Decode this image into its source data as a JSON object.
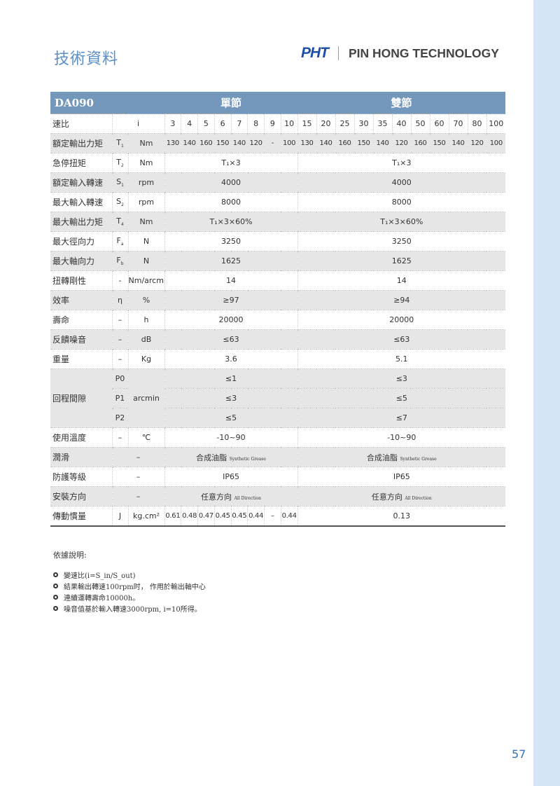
{
  "header": {
    "title": "技術資料",
    "logo_mark": "PHT",
    "company": "PIN HONG TECHNOLOGY"
  },
  "table": {
    "model": "DA090",
    "single_label": "單節",
    "double_label": "雙節",
    "ratio": {
      "label": "速比",
      "sym": "i",
      "values": [
        "3",
        "4",
        "5",
        "6",
        "7",
        "8",
        "9",
        "10",
        "15",
        "20",
        "25",
        "30",
        "35",
        "40",
        "50",
        "60",
        "70",
        "80",
        "100"
      ]
    },
    "rows": [
      {
        "label": "額定輸出力矩",
        "sym": "T",
        "sub": "1",
        "unit": "Nm",
        "values": [
          "130",
          "140",
          "160",
          "150",
          "140",
          "120",
          "-",
          "100",
          "130",
          "140",
          "160",
          "150",
          "140",
          "120",
          "160",
          "150",
          "140",
          "120",
          "100"
        ]
      },
      {
        "label": "急停扭矩",
        "sym": "T",
        "sub": "2",
        "unit": "Nm",
        "single": "T₁×3",
        "double": "T₁×3"
      },
      {
        "label": "額定輸入轉速",
        "sym": "S",
        "sub": "1",
        "unit": "rpm",
        "single": "4000",
        "double": "4000"
      },
      {
        "label": "最大輸入轉速",
        "sym": "S",
        "sub": "2",
        "unit": "rpm",
        "single": "8000",
        "double": "8000"
      },
      {
        "label": "最大輸出力矩",
        "sym": "T",
        "sub": "4",
        "unit": "Nm",
        "single": "T₁×3×60%",
        "double": "T₁×3×60%"
      },
      {
        "label": "最大徑向力",
        "sym": "F",
        "sub": "a",
        "unit": "N",
        "single": "3250",
        "double": "3250"
      },
      {
        "label": "最大軸向力",
        "sym": "F",
        "sub": "b",
        "unit": "N",
        "single": "1625",
        "double": "1625"
      },
      {
        "label": "扭轉剛性",
        "sym": "-",
        "unit": "Nm/arcmin",
        "single": "14",
        "double": "14"
      },
      {
        "label": "效率",
        "sym": "η",
        "unit": "%",
        "single": "≥97",
        "double": "≥94"
      },
      {
        "label": "壽命",
        "sym": "–",
        "unit": "h",
        "single": "20000",
        "double": "20000"
      },
      {
        "label": "反饋噪音",
        "sym": "–",
        "unit": "dB",
        "single": "≤63",
        "double": "≤63"
      },
      {
        "label": "重量",
        "sym": "–",
        "unit": "Kg",
        "single": "3.6",
        "double": "5.1"
      }
    ],
    "backlash": {
      "label": "回程間隙",
      "unit": "arcmin",
      "levels": [
        {
          "sym": "P0",
          "single": "≤1",
          "double": "≤3"
        },
        {
          "sym": "P1",
          "single": "≤3",
          "double": "≤5"
        },
        {
          "sym": "P2",
          "single": "≤5",
          "double": "≤7"
        }
      ]
    },
    "rows2": [
      {
        "label": "使用溫度",
        "sym": "–",
        "unit": "℃",
        "single": "-10~90",
        "double": "-10~90"
      },
      {
        "label": "潤滑",
        "merged": "–",
        "single": "合成油脂",
        "single_en": "Synthetic Grease",
        "double": "合成油脂",
        "double_en": "Synthetic Grease"
      },
      {
        "label": "防護等級",
        "merged": "–",
        "single": "IP65",
        "double": "IP65"
      },
      {
        "label": "安裝方向",
        "merged": "–",
        "single": "任意方向",
        "single_en": "All Direction",
        "double": "任意方向",
        "double_en": "All Direction"
      }
    ],
    "inertia": {
      "label": "傳動慣量",
      "sym": "J",
      "unit": "kg.cm²",
      "single_values": [
        "0.61",
        "0.48",
        "0.47",
        "0.45",
        "0.45",
        "0.44",
        "–",
        "0.44"
      ],
      "double": "0.13"
    }
  },
  "notes": {
    "heading": "依據說明:",
    "items": [
      "變速比(i=S_in/S_out)",
      "結果輸出轉速100rpm时， 作用於輸出軸中心",
      "連續運轉壽命10000h。",
      "噪音值基於輸入轉速3000rpm, i=10所得。"
    ]
  },
  "page_number": "57",
  "colors": {
    "header_bg": "#7398bb",
    "title": "#5b8fc7",
    "logo": "#1f4ea8",
    "strip": "#d5e5f6",
    "shade": "#e6e6e6"
  }
}
